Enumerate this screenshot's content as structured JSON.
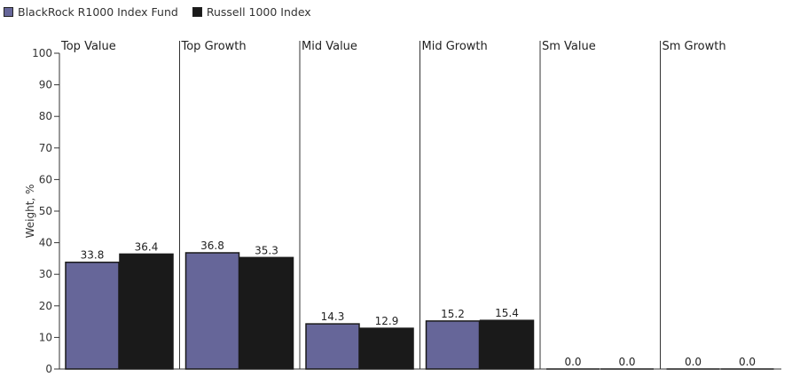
{
  "chart_data": {
    "type": "bar",
    "categories": [
      "Top Value",
      "Top Growth",
      "Mid Value",
      "Mid Growth",
      "Sm Value",
      "Sm Growth"
    ],
    "series": [
      {
        "name": "BlackRock R1000 Index Fund",
        "values": [
          33.8,
          36.8,
          14.3,
          15.2,
          0.0,
          0.0
        ]
      },
      {
        "name": "Russell 1000 Index",
        "values": [
          36.4,
          35.3,
          12.9,
          15.4,
          0.0,
          0.0
        ]
      }
    ],
    "value_labels": [
      [
        "33.8",
        "36.8",
        "14.3",
        "15.2",
        "0.0",
        "0.0"
      ],
      [
        "36.4",
        "35.3",
        "12.9",
        "15.4",
        "0.0",
        "0.0"
      ]
    ],
    "ylabel": "Weight, %",
    "ylim": [
      0,
      100
    ],
    "yticks": [
      "0",
      "10",
      "20",
      "30",
      "40",
      "50",
      "60",
      "70",
      "80",
      "90",
      "100"
    ],
    "grid": false,
    "legend_position": "top-left",
    "colors": [
      "#666699",
      "#1a1a1a"
    ]
  }
}
